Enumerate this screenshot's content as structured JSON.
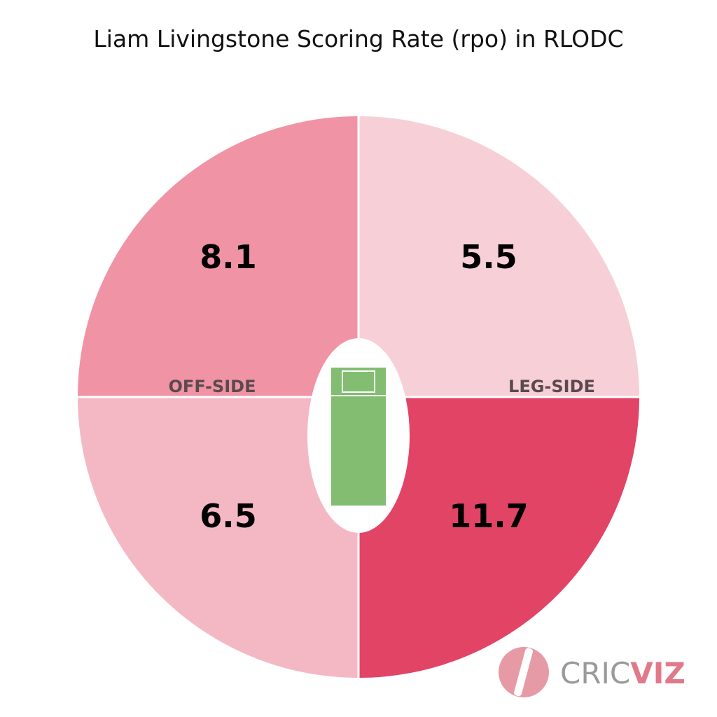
{
  "chart_data": {
    "type": "quadrant",
    "title": "Liam Livingstone Scoring Rate (rpo) in RLODC",
    "values": [
      8.1,
      5.5,
      6.5,
      11.7
    ],
    "colors": [
      "#f093a5",
      "#f7cfd7",
      "#f4b8c5",
      "#e24466"
    ],
    "side_labels": [
      "OFF-SIDE",
      "LEG-SIDE"
    ]
  },
  "logo": {
    "text": [
      "CRIC",
      "VIZ"
    ]
  }
}
